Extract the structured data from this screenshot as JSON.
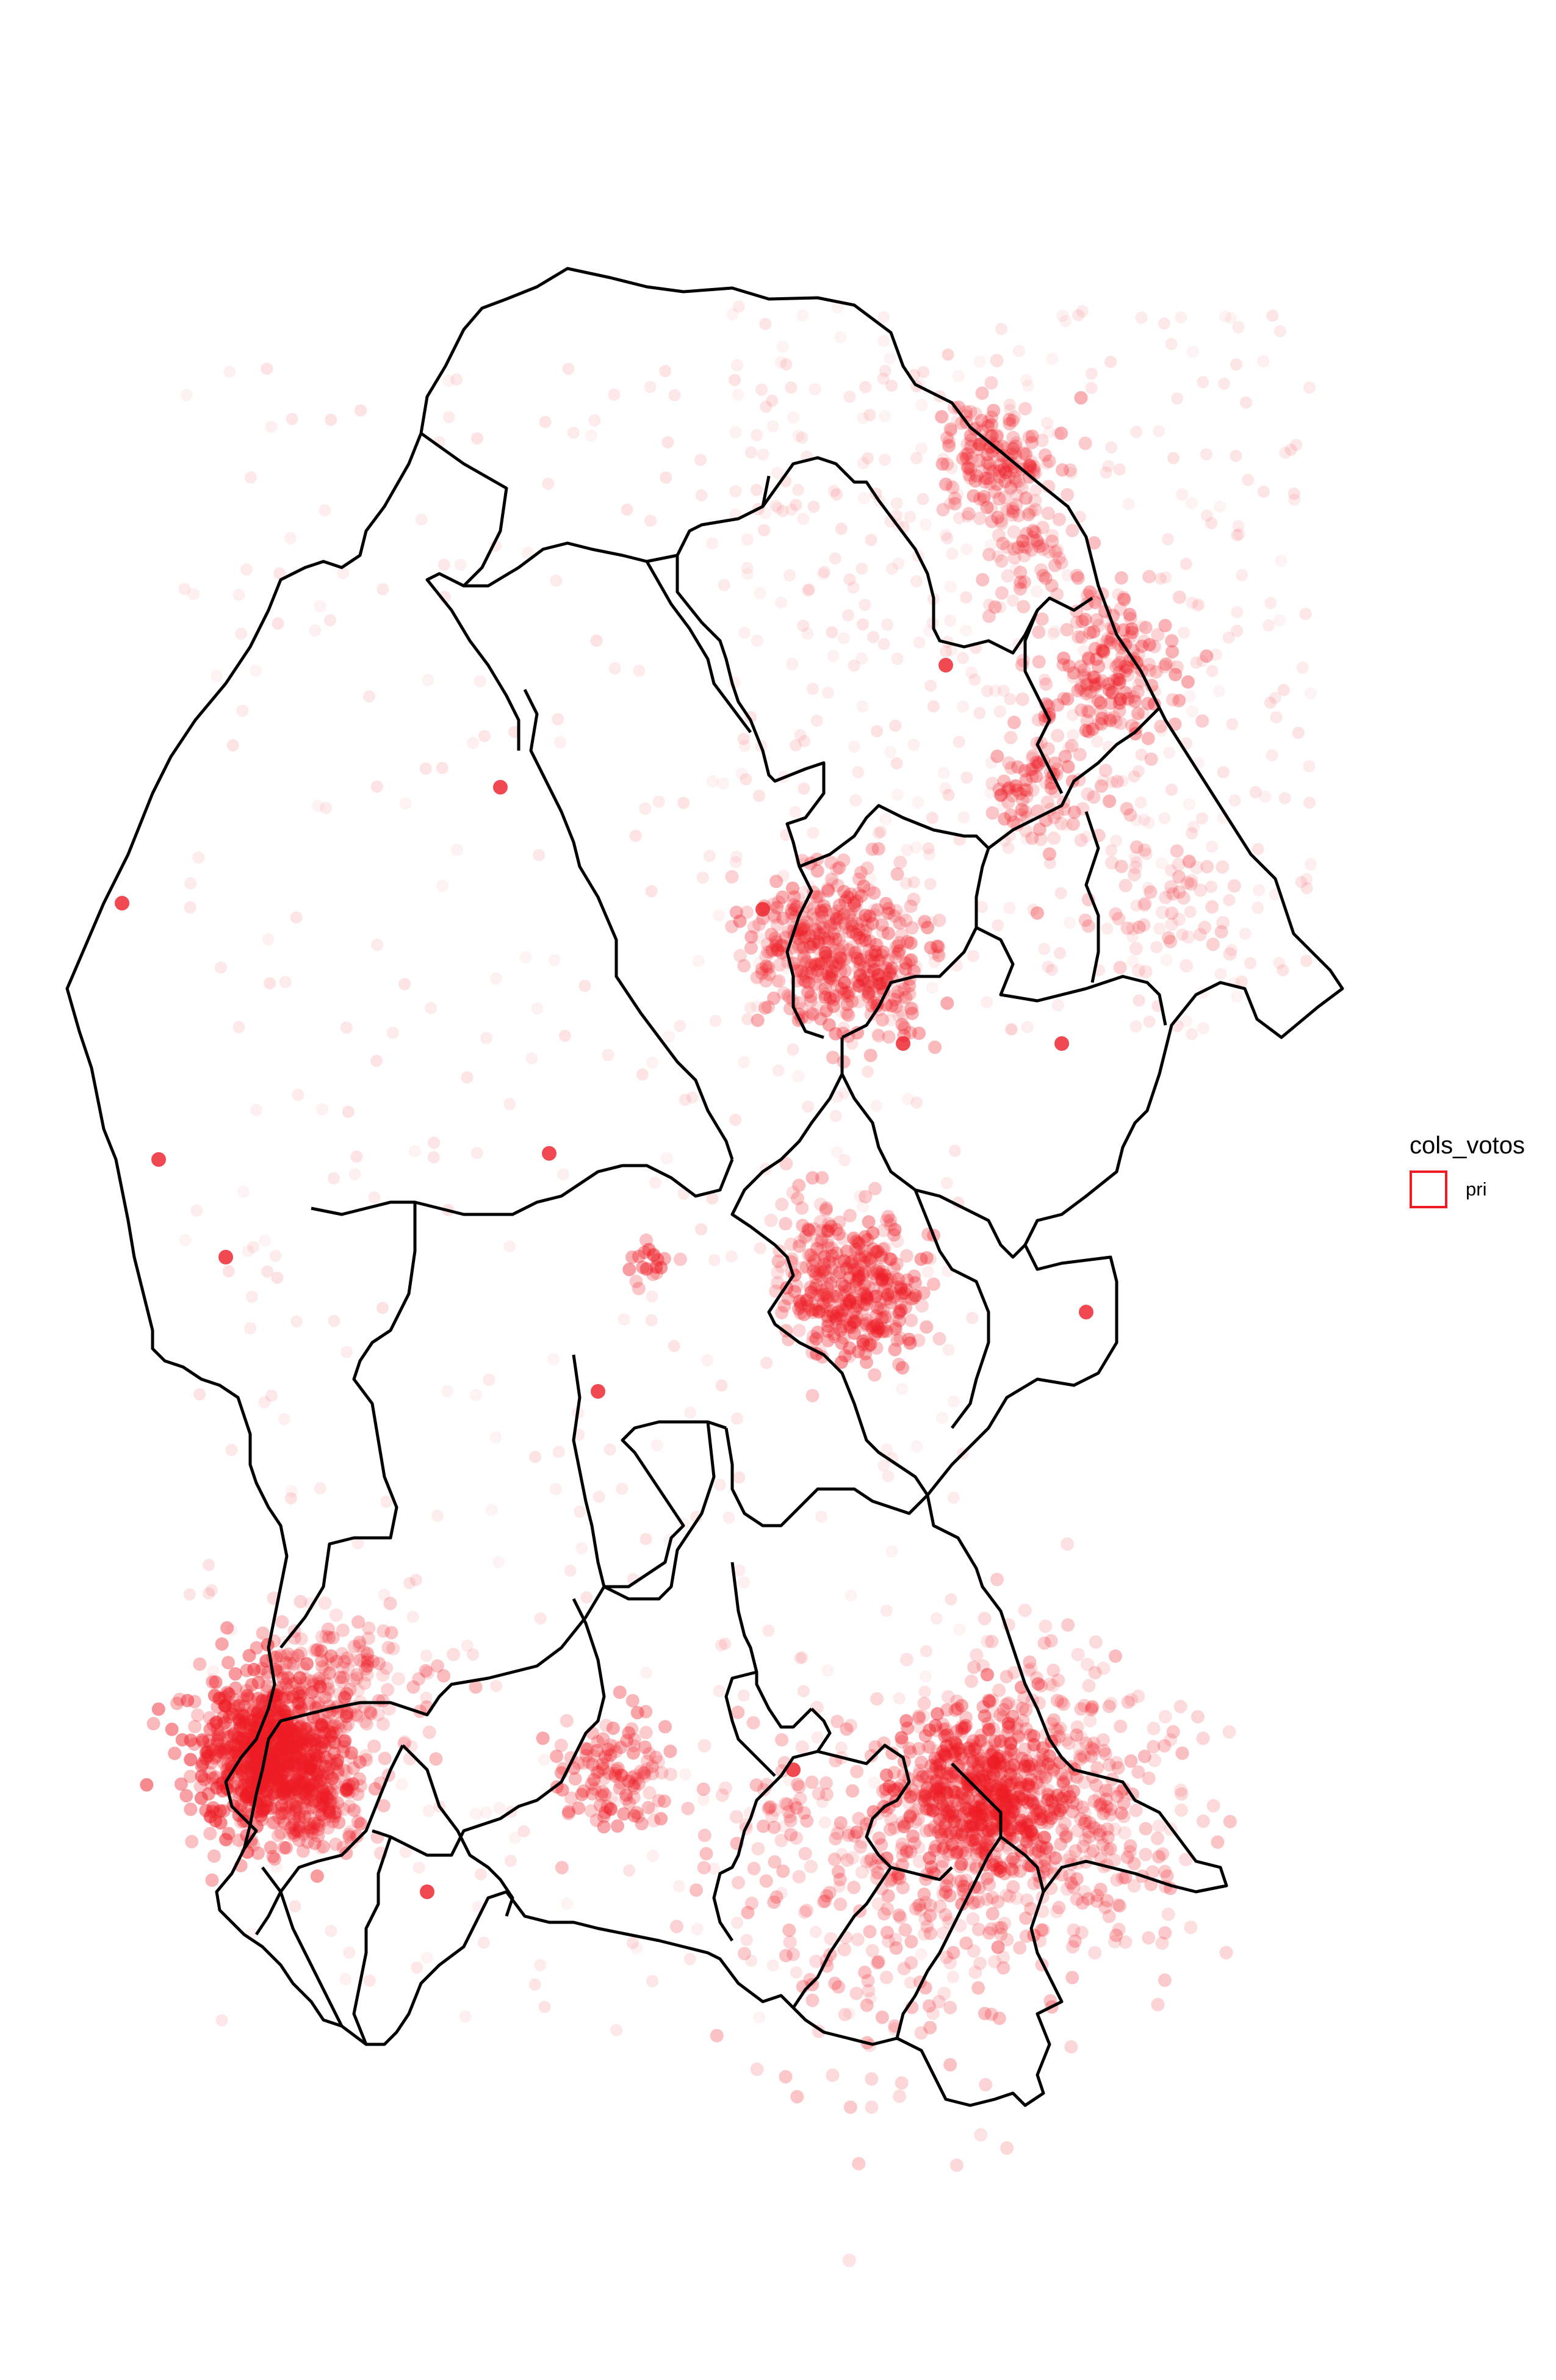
{
  "map": {
    "region_outline_color": "#000000",
    "point_color": "#ee1c25"
  },
  "legend": {
    "title": "cols_votos",
    "items": [
      {
        "label": "pri",
        "color": "#ee1c25",
        "shape": "outlined-square"
      }
    ]
  }
}
